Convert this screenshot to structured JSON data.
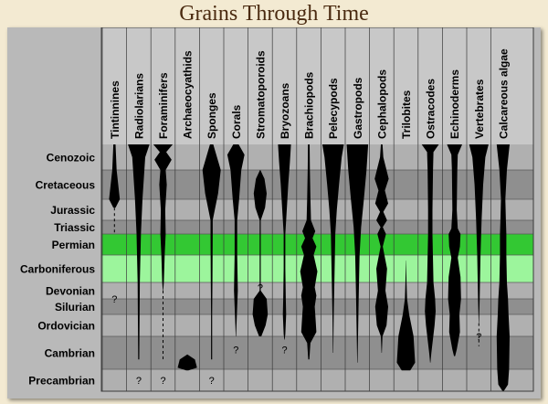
{
  "title": "Grains Through Time",
  "chart_data": {
    "type": "range-chart",
    "title": "Grains Through Time",
    "periods": [
      {
        "name": "Cenozoic",
        "band": "#b0b0b0"
      },
      {
        "name": "Cretaceous",
        "band": "#8f8f8f"
      },
      {
        "name": "Jurassic",
        "band": "#b0b0b0"
      },
      {
        "name": "Triassic",
        "band": "#8f8f8f"
      },
      {
        "name": "Permian",
        "band": "#33c833"
      },
      {
        "name": "Carboniferous",
        "band": "#9cf59c"
      },
      {
        "name": "Devonian",
        "band": "#b0b0b0"
      },
      {
        "name": "Silurian",
        "band": "#8f8f8f"
      },
      {
        "name": "Ordovician",
        "band": "#b0b0b0"
      },
      {
        "name": "Cambrian",
        "band": "#8f8f8f"
      },
      {
        "name": "Precambrian",
        "band": "#b0b0b0"
      }
    ],
    "groups": [
      {
        "name": "Tintinnines",
        "q": [
          7
        ],
        "prof": [
          [
            0,
            0.1
          ],
          [
            1,
            0.2
          ],
          [
            2,
            0.5
          ],
          [
            2.4,
            0.1
          ]
        ],
        "dash": [
          [
            2.4,
            4
          ]
        ]
      },
      {
        "name": "Radiolarians",
        "q": [
          10.5
        ],
        "prof": [
          [
            0,
            1
          ],
          [
            0.5,
            0.6
          ],
          [
            2,
            0.35
          ],
          [
            4,
            0.2
          ],
          [
            6,
            0.1
          ],
          [
            9.7,
            0.05
          ]
        ]
      },
      {
        "name": "Foraminifers",
        "q": [
          10.5
        ],
        "prof": [
          [
            0,
            0.9
          ],
          [
            0.3,
            0.3
          ],
          [
            0.6,
            0.8
          ],
          [
            1,
            0.25
          ],
          [
            1.5,
            0.35
          ],
          [
            2.5,
            0.2
          ],
          [
            4,
            0.25
          ],
          [
            5,
            0.15
          ],
          [
            6,
            0.08
          ],
          [
            6.5,
            0.02
          ]
        ],
        "dash": [
          [
            6.5,
            9.7
          ]
        ]
      },
      {
        "name": "Archaeocyathids",
        "q": [],
        "prof": [
          [
            9.55,
            0
          ],
          [
            9.7,
            0.7
          ],
          [
            9.95,
            0.9
          ],
          [
            10.05,
            0.1
          ]
        ]
      },
      {
        "name": "Sponges",
        "q": [
          10.5
        ],
        "prof": [
          [
            0,
            0.15
          ],
          [
            0.5,
            0.5
          ],
          [
            1,
            0.85
          ],
          [
            1.8,
            0.6
          ],
          [
            2.5,
            0.3
          ],
          [
            3,
            0.1
          ],
          [
            4,
            0.1
          ],
          [
            6,
            0.08
          ],
          [
            8,
            0.05
          ],
          [
            9.7,
            0.05
          ]
        ]
      },
      {
        "name": "Corals",
        "q": [
          9.4
        ],
        "prof": [
          [
            0,
            0.25
          ],
          [
            0.4,
            0.8
          ],
          [
            1,
            0.5
          ],
          [
            2,
            0.3
          ],
          [
            3,
            0.12
          ],
          [
            5,
            0.12
          ],
          [
            6.5,
            0.18
          ],
          [
            7.5,
            0.12
          ],
          [
            8.5,
            0.05
          ],
          [
            9,
            0.02
          ]
        ]
      },
      {
        "name": "Stromatoporoids",
        "q": [
          6.3
        ],
        "prof": [
          [
            1,
            0.02
          ],
          [
            1.3,
            0.4
          ],
          [
            1.8,
            0.6
          ],
          [
            2.4,
            0.45
          ],
          [
            3,
            0.05
          ],
          [
            6.5,
            0.05
          ],
          [
            7,
            0.6
          ],
          [
            8,
            0.7
          ],
          [
            8.5,
            0.5
          ],
          [
            9,
            0.1
          ]
        ]
      },
      {
        "name": "Bryozoans",
        "q": [
          9.4
        ],
        "prof": [
          [
            0,
            0.6
          ],
          [
            0.7,
            0.5
          ],
          [
            1.5,
            0.35
          ],
          [
            3,
            0.15
          ],
          [
            4,
            0.08
          ],
          [
            5.5,
            0.08
          ],
          [
            7,
            0.12
          ],
          [
            8,
            0.15
          ],
          [
            8.9,
            0.08
          ],
          [
            9.1,
            0.02
          ]
        ]
      },
      {
        "name": "Brachiopods",
        "q": [],
        "prof": [
          [
            0,
            0.08
          ],
          [
            1,
            0.1
          ],
          [
            2,
            0.15
          ],
          [
            3,
            0.2
          ],
          [
            3.8,
            0.6
          ],
          [
            4.2,
            0.35
          ],
          [
            4.6,
            0.7
          ],
          [
            5,
            0.45
          ],
          [
            5.6,
            0.8
          ],
          [
            6.3,
            0.55
          ],
          [
            6.8,
            0.7
          ],
          [
            7.5,
            0.55
          ],
          [
            8,
            0.6
          ],
          [
            8.8,
            0.7
          ],
          [
            9.2,
            0.15
          ],
          [
            9.7,
            0.05
          ]
        ]
      },
      {
        "name": "Pelecypods",
        "q": [],
        "prof": [
          [
            0,
            1
          ],
          [
            0.5,
            0.8
          ],
          [
            1.5,
            0.55
          ],
          [
            2.5,
            0.35
          ],
          [
            4,
            0.2
          ],
          [
            6,
            0.12
          ],
          [
            8,
            0.06
          ],
          [
            9.5,
            0.02
          ]
        ]
      },
      {
        "name": "Gastropods",
        "q": [],
        "prof": [
          [
            0,
            1
          ],
          [
            1,
            0.85
          ],
          [
            2,
            0.6
          ],
          [
            3.5,
            0.35
          ],
          [
            5,
            0.2
          ],
          [
            7,
            0.12
          ],
          [
            9,
            0.06
          ],
          [
            9.8,
            0.02
          ]
        ]
      },
      {
        "name": "Cephalopods",
        "q": [],
        "prof": [
          [
            0,
            0.08
          ],
          [
            0.5,
            0.15
          ],
          [
            1.3,
            0.65
          ],
          [
            1.7,
            0.3
          ],
          [
            2.2,
            0.6
          ],
          [
            2.6,
            0.15
          ],
          [
            3,
            0.5
          ],
          [
            3.5,
            0.1
          ],
          [
            4,
            0.4
          ],
          [
            4.6,
            0.1
          ],
          [
            5.5,
            0.5
          ],
          [
            6.5,
            0.35
          ],
          [
            7.5,
            0.6
          ],
          [
            8.5,
            0.45
          ],
          [
            9,
            0.08
          ],
          [
            9.5,
            0.02
          ]
        ]
      },
      {
        "name": "Trilobites",
        "q": [],
        "prof": [
          [
            5.2,
            0.01
          ],
          [
            6,
            0.05
          ],
          [
            7,
            0.1
          ],
          [
            8,
            0.3
          ],
          [
            9,
            0.7
          ],
          [
            9.8,
            0.85
          ],
          [
            10.05,
            0.4
          ]
        ]
      },
      {
        "name": "Ostracodes",
        "q": [],
        "prof": [
          [
            0,
            0.8
          ],
          [
            0.3,
            0.3
          ],
          [
            1,
            0.25
          ],
          [
            2.5,
            0.2
          ],
          [
            4,
            0.2
          ],
          [
            6,
            0.3
          ],
          [
            7,
            0.45
          ],
          [
            7.8,
            0.5
          ],
          [
            8.5,
            0.4
          ],
          [
            9.5,
            0.1
          ],
          [
            9.8,
            0.02
          ]
        ]
      },
      {
        "name": "Echinoderms",
        "q": [],
        "prof": [
          [
            0,
            0.7
          ],
          [
            0.4,
            0.3
          ],
          [
            1,
            0.25
          ],
          [
            2.5,
            0.2
          ],
          [
            3.6,
            0.3
          ],
          [
            4,
            0.55
          ],
          [
            4.6,
            0.5
          ],
          [
            5.1,
            0.3
          ],
          [
            5.8,
            0.55
          ],
          [
            7,
            0.6
          ],
          [
            8,
            0.45
          ],
          [
            8.8,
            0.5
          ],
          [
            9.4,
            0.2
          ],
          [
            9.6,
            0.05
          ]
        ]
      },
      {
        "name": "Vertebrates",
        "q": [
          9
        ],
        "prof": [
          [
            0,
            0.9
          ],
          [
            0.5,
            0.6
          ],
          [
            1.5,
            0.4
          ],
          [
            3,
            0.25
          ],
          [
            5,
            0.15
          ],
          [
            7,
            0.08
          ],
          [
            8.4,
            0.02
          ]
        ],
        "dash": [
          [
            8.4,
            9.3
          ]
        ]
      },
      {
        "name": "Calcareous algae",
        "q": [],
        "prof": [
          [
            0,
            0.6
          ],
          [
            1,
            0.35
          ],
          [
            2,
            0.2
          ],
          [
            3,
            0.25
          ],
          [
            4,
            0.3
          ],
          [
            5,
            0.3
          ],
          [
            6,
            0.35
          ],
          [
            7,
            0.45
          ],
          [
            8,
            0.5
          ],
          [
            9,
            0.6
          ],
          [
            10,
            0.55
          ],
          [
            10.7,
            0.45
          ],
          [
            11,
            0.05
          ]
        ]
      }
    ]
  }
}
